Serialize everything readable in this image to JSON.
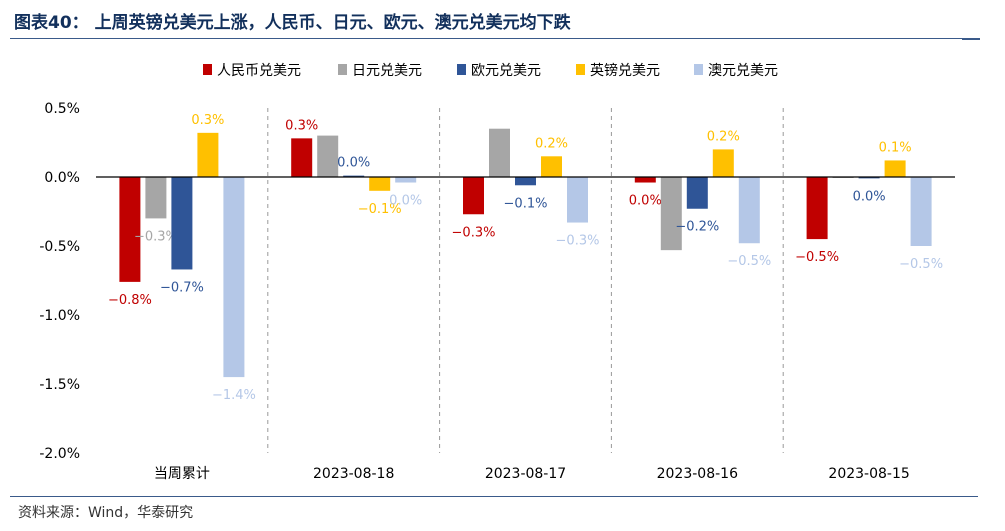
{
  "title": "图表40： 上周英镑兑美元上涨，人民币、日元、欧元、澳元兑美元均下跌",
  "source": "资料来源：Wind，华泰研究",
  "chart_data": {
    "type": "bar",
    "categories": [
      "当周累计",
      "2023-08-18",
      "2023-08-17",
      "2023-08-16",
      "2023-08-15"
    ],
    "ylim": [
      -2.0,
      0.5
    ],
    "yticks": [
      0.5,
      0.0,
      -0.5,
      -1.0,
      -1.5,
      -2.0
    ],
    "ytick_labels": [
      "0.5%",
      "0.0%",
      "-0.5%",
      "-1.0%",
      "-1.5%",
      "-2.0%"
    ],
    "series": [
      {
        "name": "人民币兑美元",
        "color": "#c00000",
        "values": [
          -0.76,
          0.28,
          -0.27,
          -0.04,
          -0.45
        ],
        "labels": [
          "−0.8%",
          "0.3%",
          "−0.3%",
          "0.0%",
          "−0.5%"
        ]
      },
      {
        "name": "日元兑美元",
        "color": "#a6a6a6",
        "values": [
          -0.3,
          0.3,
          0.35,
          -0.53,
          0.0
        ],
        "labels": [
          "−0.3%",
          "",
          "",
          "",
          ""
        ]
      },
      {
        "name": "欧元兑美元",
        "color": "#2f5597",
        "values": [
          -0.67,
          0.01,
          -0.06,
          -0.23,
          -0.01
        ],
        "labels": [
          "−0.7%",
          "0.0%",
          "−0.1%",
          "−0.2%",
          "0.0%"
        ]
      },
      {
        "name": "英镑兑美元",
        "color": "#ffc000",
        "values": [
          0.32,
          -0.1,
          0.15,
          0.2,
          0.12
        ],
        "labels": [
          "0.3%",
          "−0.1%",
          "0.2%",
          "0.2%",
          "0.1%"
        ]
      },
      {
        "name": "澳元兑美元",
        "color": "#b4c7e7",
        "values": [
          -1.45,
          -0.04,
          -0.33,
          -0.48,
          -0.5
        ],
        "labels": [
          "−1.4%",
          "0.0%",
          "−0.3%",
          "−0.5%",
          "−0.5%"
        ]
      }
    ]
  }
}
